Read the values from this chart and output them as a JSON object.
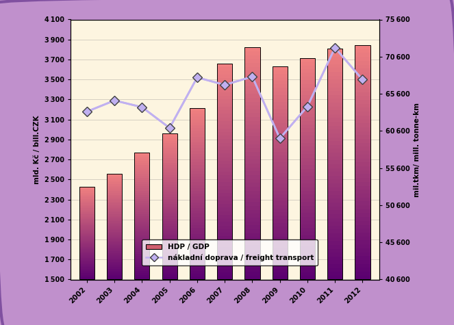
{
  "years": [
    2002,
    2003,
    2004,
    2005,
    2006,
    2007,
    2008,
    2009,
    2010,
    2011,
    2012
  ],
  "gdp_values": [
    2430,
    2560,
    2770,
    2960,
    3215,
    3660,
    3820,
    3629,
    3714,
    3807,
    3843
  ],
  "freight_values": [
    63200,
    64700,
    63800,
    61000,
    67800,
    66800,
    67900,
    59600,
    63900,
    71800,
    67500
  ],
  "bar_color_top": "#f08080",
  "bar_color_bottom": "#5b0070",
  "line_color": "#c0b0f0",
  "background_outer": "#c090cc",
  "background_inner": "#fdf5e0",
  "ylabel_left": "mld. Kč / bill.CZK",
  "ylabel_right": "mil.tkm/ mill. tonne-km",
  "yticks_left": [
    1500,
    1700,
    1900,
    2100,
    2300,
    2500,
    2700,
    2900,
    3100,
    3300,
    3500,
    3700,
    3900,
    4100
  ],
  "yticks_right": [
    40600,
    45600,
    50600,
    55600,
    60600,
    65600,
    70600,
    75600
  ],
  "ylim_left": [
    1500,
    4100
  ],
  "ylim_right": [
    40600,
    75600
  ],
  "legend_gdp": "HDP / GDP",
  "legend_freight": "nákladní doprava / freight transport",
  "bar_width": 0.55
}
